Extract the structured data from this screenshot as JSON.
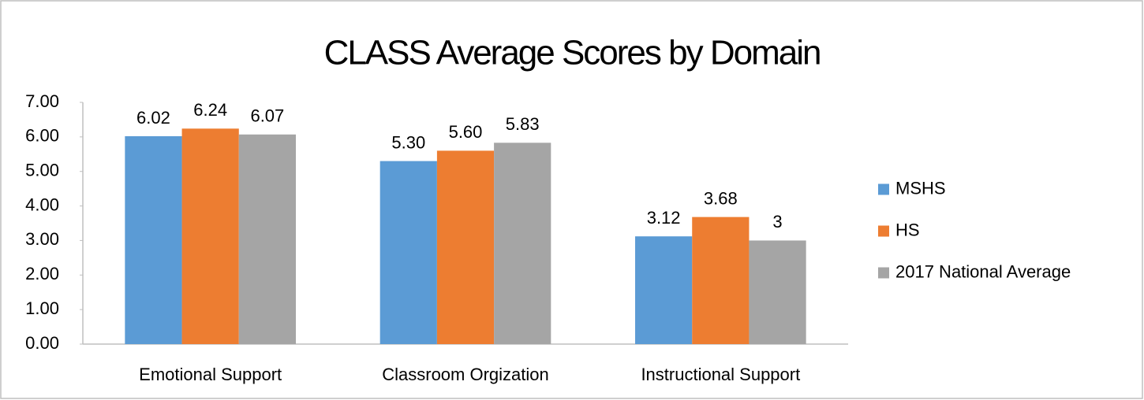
{
  "chart_data": {
    "type": "bar",
    "title": "CLASS Average Scores by Domain",
    "categories": [
      "Emotional Support",
      "Classroom Orgization",
      "Instructional Support"
    ],
    "series": [
      {
        "name": "MSHS",
        "color": "#5b9bd5",
        "values": [
          6.02,
          5.3,
          3.12
        ],
        "value_labels": [
          "6.02",
          "5.30",
          "3.12"
        ]
      },
      {
        "name": "HS",
        "color": "#ed7d31",
        "values": [
          6.24,
          5.6,
          3.68
        ],
        "value_labels": [
          "6.24",
          "5.60",
          "3.68"
        ]
      },
      {
        "name": "2017 National Average",
        "color": "#a5a5a5",
        "values": [
          6.07,
          5.83,
          3
        ],
        "value_labels": [
          "6.07",
          "5.83",
          "3"
        ]
      }
    ],
    "ylim": [
      0,
      7
    ],
    "yticks": [
      {
        "value": 0,
        "label": "0.00"
      },
      {
        "value": 1,
        "label": "1.00"
      },
      {
        "value": 2,
        "label": "2.00"
      },
      {
        "value": 3,
        "label": "3.00"
      },
      {
        "value": 4,
        "label": "4.00"
      },
      {
        "value": 5,
        "label": "5.00"
      },
      {
        "value": 6,
        "label": "6.00"
      },
      {
        "value": 7,
        "label": "7.00"
      }
    ],
    "grid": false,
    "legend": "right"
  }
}
